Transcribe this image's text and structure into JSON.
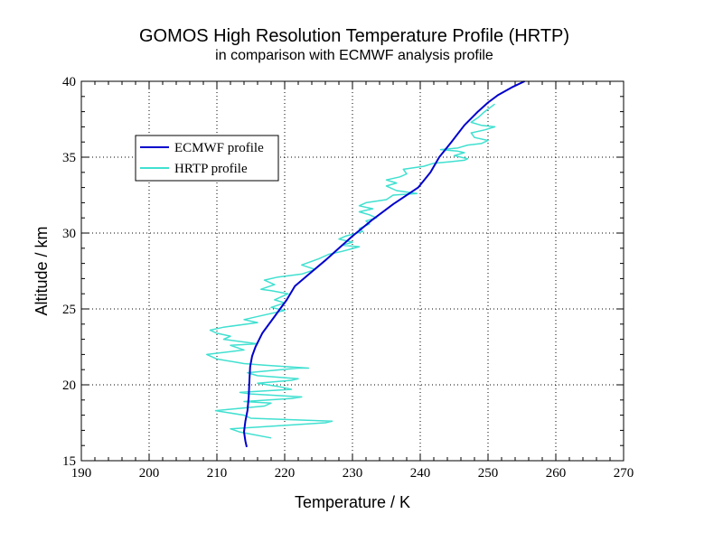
{
  "chart_data": {
    "type": "line",
    "title": "GOMOS High Resolution Temperature Profile (HRTP)",
    "subtitle": "in comparison with ECMWF analysis profile",
    "xlabel": "Temperature / K",
    "ylabel": "Altitude / km",
    "xlim": [
      190,
      270
    ],
    "ylim": [
      15,
      40
    ],
    "xticks": [
      190,
      200,
      210,
      220,
      230,
      240,
      250,
      260,
      270
    ],
    "yticks": [
      15,
      20,
      25,
      30,
      35,
      40
    ],
    "grid": true,
    "legend": {
      "placement": "upper-left"
    },
    "series": [
      {
        "name": "ECMWF profile",
        "color": "#0000cd",
        "points": [
          [
            214.4,
            15.9
          ],
          [
            214.2,
            16.3
          ],
          [
            214.0,
            16.9
          ],
          [
            214.2,
            17.6
          ],
          [
            214.5,
            18.3
          ],
          [
            214.7,
            19.2
          ],
          [
            214.8,
            20.3
          ],
          [
            214.9,
            21.2
          ],
          [
            215.2,
            21.9
          ],
          [
            215.7,
            22.5
          ],
          [
            216.7,
            23.4
          ],
          [
            218.5,
            24.5
          ],
          [
            220.3,
            25.6
          ],
          [
            221.5,
            26.5
          ],
          [
            223.6,
            27.3
          ],
          [
            226.0,
            28.2
          ],
          [
            228.0,
            29.0
          ],
          [
            230.0,
            29.8
          ],
          [
            233.0,
            30.9
          ],
          [
            236.0,
            31.9
          ],
          [
            239.7,
            33.0
          ],
          [
            241.5,
            34.0
          ],
          [
            242.8,
            35.0
          ],
          [
            244.6,
            36.0
          ],
          [
            246.5,
            37.1
          ],
          [
            248.5,
            38.0
          ],
          [
            250.0,
            38.6
          ],
          [
            251.5,
            39.1
          ],
          [
            253.5,
            39.6
          ],
          [
            255.4,
            40.0
          ]
        ]
      },
      {
        "name": "HRTP profile",
        "color": "#40e0d0",
        "points": [
          [
            218.0,
            16.5
          ],
          [
            213.3,
            16.9
          ],
          [
            212.0,
            17.1
          ],
          [
            226.0,
            17.5
          ],
          [
            227.0,
            17.6
          ],
          [
            215.0,
            17.8
          ],
          [
            214.0,
            18.0
          ],
          [
            209.8,
            18.3
          ],
          [
            217.0,
            18.6
          ],
          [
            218.0,
            18.8
          ],
          [
            214.0,
            18.9
          ],
          [
            221.0,
            19.1
          ],
          [
            222.5,
            19.2
          ],
          [
            215.0,
            19.4
          ],
          [
            213.4,
            19.5
          ],
          [
            221.0,
            19.7
          ],
          [
            219.0,
            19.9
          ],
          [
            216.0,
            20.1
          ],
          [
            221.0,
            20.3
          ],
          [
            222.0,
            20.4
          ],
          [
            216.0,
            20.6
          ],
          [
            214.5,
            20.8
          ],
          [
            222.0,
            21.1
          ],
          [
            223.5,
            21.1
          ],
          [
            217.0,
            21.3
          ],
          [
            214.0,
            21.4
          ],
          [
            210.0,
            21.7
          ],
          [
            208.5,
            22.0
          ],
          [
            214.0,
            22.3
          ],
          [
            212.0,
            22.6
          ],
          [
            216.0,
            22.7
          ],
          [
            211.0,
            23.0
          ],
          [
            212.0,
            23.2
          ],
          [
            210.0,
            23.4
          ],
          [
            209.0,
            23.6
          ],
          [
            211.0,
            23.8
          ],
          [
            216.0,
            24.1
          ],
          [
            214.0,
            24.3
          ],
          [
            217.0,
            24.6
          ],
          [
            220.0,
            24.9
          ],
          [
            218.0,
            25.1
          ],
          [
            220.0,
            25.4
          ],
          [
            218.5,
            25.6
          ],
          [
            220.5,
            26.0
          ],
          [
            218.0,
            26.2
          ],
          [
            216.5,
            26.3
          ],
          [
            218.5,
            26.6
          ],
          [
            217.0,
            26.9
          ],
          [
            219.0,
            27.1
          ],
          [
            222.5,
            27.3
          ],
          [
            224.5,
            27.6
          ],
          [
            222.5,
            27.9
          ],
          [
            225.0,
            28.3
          ],
          [
            226.5,
            28.6
          ],
          [
            228.5,
            28.8
          ],
          [
            231.0,
            29.1
          ],
          [
            228.5,
            29.2
          ],
          [
            230.0,
            29.4
          ],
          [
            228.0,
            29.6
          ],
          [
            229.0,
            29.8
          ],
          [
            231.5,
            30.1
          ],
          [
            231.0,
            30.3
          ],
          [
            232.5,
            30.6
          ],
          [
            232.0,
            30.8
          ],
          [
            233.5,
            31.0
          ],
          [
            232.5,
            31.2
          ],
          [
            231.0,
            31.4
          ],
          [
            233.0,
            31.6
          ],
          [
            231.0,
            31.8
          ],
          [
            232.0,
            32.0
          ],
          [
            235.0,
            32.2
          ],
          [
            236.0,
            32.5
          ],
          [
            239.5,
            32.6
          ],
          [
            236.5,
            32.8
          ],
          [
            235.0,
            33.1
          ],
          [
            236.5,
            33.3
          ],
          [
            235.0,
            33.5
          ],
          [
            237.0,
            33.7
          ],
          [
            238.0,
            33.9
          ],
          [
            237.5,
            34.2
          ],
          [
            240.5,
            34.4
          ],
          [
            242.0,
            34.6
          ],
          [
            244.5,
            34.7
          ],
          [
            246.5,
            34.8
          ],
          [
            247.0,
            34.9
          ],
          [
            245.0,
            35.1
          ],
          [
            246.5,
            35.3
          ],
          [
            245.5,
            35.4
          ],
          [
            243.0,
            35.5
          ],
          [
            245.5,
            35.6
          ],
          [
            247.0,
            35.8
          ],
          [
            249.0,
            35.9
          ],
          [
            250.0,
            36.1
          ],
          [
            248.0,
            36.3
          ],
          [
            247.5,
            36.6
          ],
          [
            249.5,
            36.8
          ],
          [
            251.0,
            37.0
          ],
          [
            249.0,
            37.1
          ],
          [
            247.5,
            37.3
          ],
          [
            248.5,
            37.6
          ],
          [
            249.5,
            38.0
          ],
          [
            251.0,
            38.5
          ]
        ]
      }
    ]
  }
}
